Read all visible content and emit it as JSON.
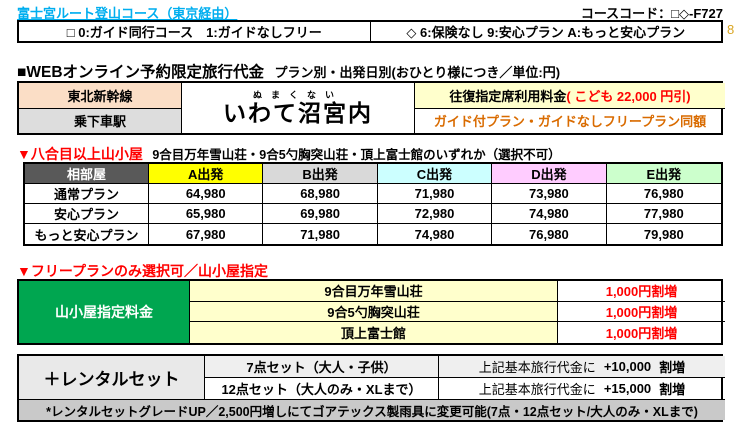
{
  "header": {
    "title": "富士宮ルート登山コース（東京経由）",
    "course_code": "コースコード：□◇-F727",
    "margin_note": "8"
  },
  "code_legend": {
    "square": "□ 0:ガイド同行コース　1:ガイドなしフリー",
    "diamond": "◇ 6:保険なし 9:安心プラン A:もっと安心プラン"
  },
  "web_price": {
    "heading": "■WEBオンライン予約限定旅行代金",
    "subheading": "プラン別・出発日別(おひとり様につき／単位:円)"
  },
  "station_table": {
    "line_label": "東北新幹線",
    "station_row_label": "乗下車駅",
    "furigana": "ぬまくない",
    "station_name": "いわて沼宮内",
    "seat_fee_label": "往復指定席利用料金",
    "seat_fee_child_discount": "( こども 22,000 円引)",
    "same_price_note": "ガイド付プラン・ガイドなしフリープラン同額"
  },
  "hut_price": {
    "heading": "▼八合目以上山小屋",
    "subheading": "9合目万年雪山荘・9合5勺胸突山荘・頂上富士館のいずれか（選択不可）",
    "corner_header": "相部屋",
    "columns": [
      {
        "label": "A出発",
        "color": "#FFFF00"
      },
      {
        "label": "B出発",
        "color": "#D9D9D9"
      },
      {
        "label": "C出発",
        "color": "#CCFFFF"
      },
      {
        "label": "D出発",
        "color": "#FFCCFF"
      },
      {
        "label": "E出発",
        "color": "#CCFFCC"
      }
    ],
    "rows": [
      {
        "plan": "通常プラン",
        "prices": [
          "64,980",
          "68,980",
          "71,980",
          "73,980",
          "76,980"
        ]
      },
      {
        "plan": "安心プラン",
        "prices": [
          "65,980",
          "69,980",
          "72,980",
          "74,980",
          "77,980"
        ]
      },
      {
        "plan": "もっと安心プラン",
        "prices": [
          "67,980",
          "71,980",
          "74,980",
          "76,980",
          "79,980"
        ]
      }
    ]
  },
  "hut_select": {
    "heading": "▼フリープランのみ選択可／山小屋指定",
    "row_header": "山小屋指定料金",
    "rows": [
      {
        "hut": "9合目万年雪山荘",
        "surcharge": "1,000円割増"
      },
      {
        "hut": "9合5勺胸突山荘",
        "surcharge": "1,000円割増"
      },
      {
        "hut": "頂上富士館",
        "surcharge": "1,000円割増"
      }
    ]
  },
  "rental": {
    "row_header": "＋レンタルセット",
    "rows": [
      {
        "set": "7点セット（大人・子供）",
        "base": "上記基本旅行代金に",
        "amount": "+10,000",
        "suffix": "割増"
      },
      {
        "set": "12点セット（大人のみ・XLまで）",
        "base": "上記基本旅行代金に",
        "amount": "+15,000",
        "suffix": "割増"
      }
    ],
    "note": "*レンタルセットグレードUP／2,500円増しにてゴアテックス製雨具に変更可能(7点・12点セット/大人のみ・XLまで)"
  },
  "colors": {
    "title_blue": "#00AEEF",
    "red": "#FF0000",
    "orange_text": "#D96B00",
    "margin_gold": "#D9A521",
    "peach": "#FBDEC6",
    "light_gray": "#DDDDDD",
    "dark_gray_header": "#595959",
    "light_yellow": "#FFFFCC",
    "green_header": "#00A650",
    "note_gray": "#C9C9C9"
  }
}
